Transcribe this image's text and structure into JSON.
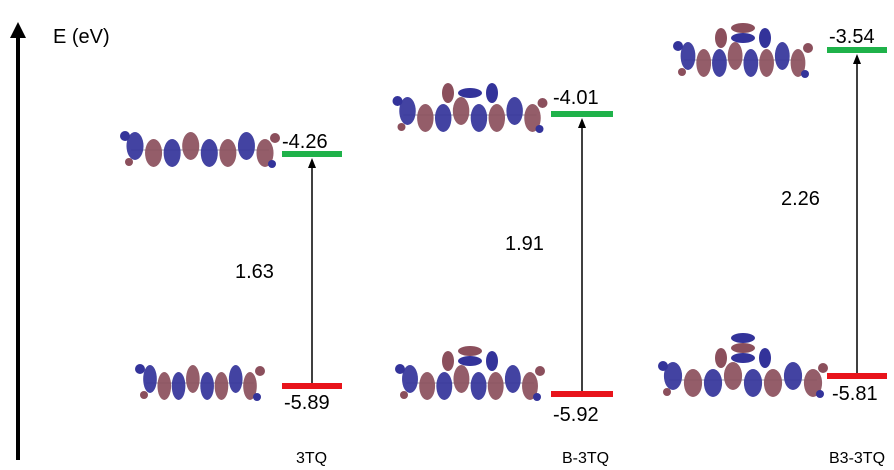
{
  "axis": {
    "label": "E (eV)"
  },
  "colors": {
    "lumo": "#1fb24a",
    "homo": "#e8141b",
    "lobe_blue": "#33339a",
    "lobe_red": "#8b4f5c",
    "bond": "#b9b9c4"
  },
  "compounds": [
    {
      "name": "3TQ",
      "lumo_label": "-4.26",
      "homo_label": "-5.89",
      "gap_label": "1.63",
      "lumo_eV": -4.26,
      "homo_eV": -5.89,
      "gap_eV": 1.63
    },
    {
      "name": "B-3TQ",
      "lumo_label": "-4.01",
      "homo_label": "-5.92",
      "gap_label": "1.91",
      "lumo_eV": -4.01,
      "homo_eV": -5.92,
      "gap_eV": 1.91
    },
    {
      "name": "B3-3TQ",
      "lumo_label": "-3.54",
      "homo_label": "-5.81",
      "gap_label": "2.26",
      "lumo_eV": -3.54,
      "homo_eV": -5.81,
      "gap_eV": 2.26
    }
  ],
  "icons": {
    "orbital": "molecular-orbital-icon",
    "axis_arrow": "up-arrow-icon",
    "transition_arrow": "up-arrow-icon"
  }
}
